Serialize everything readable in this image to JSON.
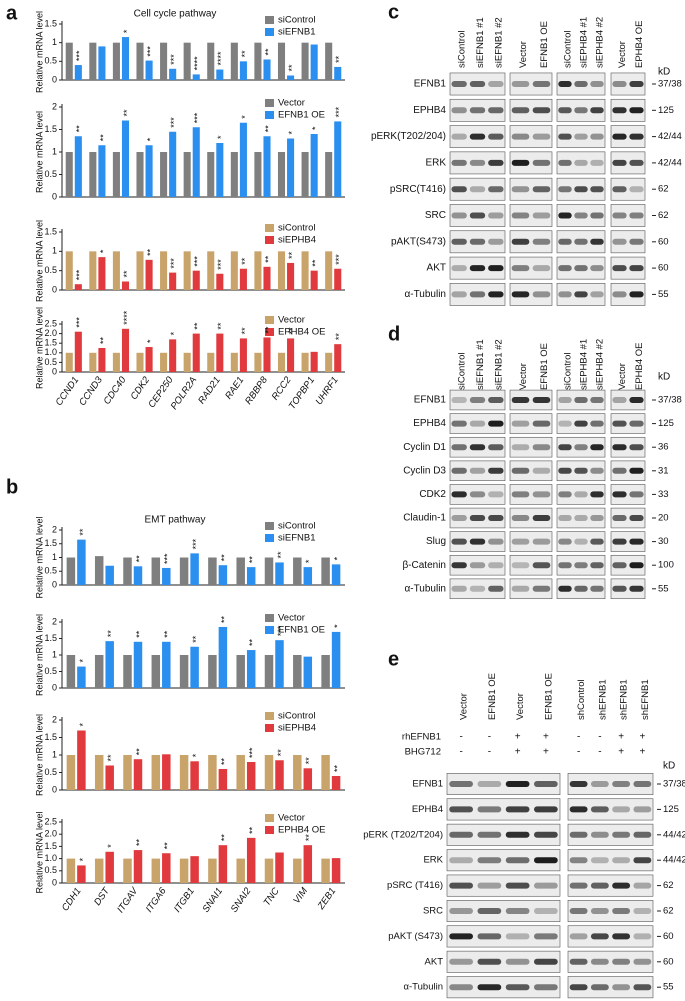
{
  "panel_labels": [
    "a",
    "b"
  ],
  "chart_data": [
    {
      "type": "bar",
      "title": "Cell cycle pathway",
      "y_label": "Relative mRNA level",
      "ylim": [
        0,
        1.5
      ],
      "yticks": [
        0,
        0.5,
        1,
        1.5
      ],
      "series": [
        {
          "name": "siControl",
          "color": "#7f7f7f",
          "values": [
            1,
            1,
            1,
            1,
            1,
            1,
            1,
            1,
            1,
            1,
            1,
            1
          ]
        },
        {
          "name": "siEFNB1",
          "color": "#2b8ff0",
          "values": [
            0.4,
            0.9,
            1.15,
            0.52,
            0.3,
            0.15,
            0.28,
            0.5,
            0.55,
            0.12,
            0.95,
            0.35
          ],
          "stars": [
            "***",
            null,
            "*",
            "***",
            "***",
            "****",
            "****",
            "**",
            "**",
            "**",
            null,
            "**"
          ]
        }
      ]
    },
    {
      "type": "bar",
      "y_label": "Relative mRNA level",
      "ylim": [
        0,
        2
      ],
      "yticks": [
        0,
        0.5,
        1,
        1.5,
        2
      ],
      "series": [
        {
          "name": "Vector",
          "color": "#7f7f7f",
          "values": [
            1,
            1,
            1,
            1,
            1,
            1,
            1,
            1,
            1,
            1,
            1,
            1
          ]
        },
        {
          "name": "EFNB1 OE",
          "color": "#2b8ff0",
          "values": [
            1.35,
            1.15,
            1.7,
            1.15,
            1.45,
            1.55,
            1.2,
            1.65,
            1.35,
            1.3,
            1.4,
            1.68
          ],
          "stars": [
            "**",
            "**",
            "**",
            "*",
            "***",
            "***",
            "*",
            "*",
            "**",
            "*",
            "*",
            "***"
          ]
        }
      ]
    },
    {
      "type": "bar",
      "y_label": "Relative mRNA level",
      "ylim": [
        0,
        1.5
      ],
      "yticks": [
        0,
        0.5,
        1,
        1.5
      ],
      "series": [
        {
          "name": "siControl",
          "color": "#c9a46a",
          "values": [
            1,
            1,
            1,
            1,
            1,
            1,
            1,
            1,
            1,
            1,
            1,
            1
          ]
        },
        {
          "name": "siEPHB4",
          "color": "#e03a3e",
          "values": [
            0.15,
            0.85,
            0.22,
            0.78,
            0.45,
            0.5,
            0.42,
            0.55,
            0.6,
            0.7,
            0.5,
            0.55
          ],
          "stars": [
            "***",
            "*",
            "**",
            "**",
            "***",
            "***",
            "***",
            "**",
            "**",
            "**",
            "**",
            "***"
          ]
        }
      ]
    },
    {
      "type": "bar",
      "y_label": "Relative mRNA level",
      "ylim": [
        0,
        2.5
      ],
      "yticks": [
        0,
        0.5,
        {
          "value": 1,
          "label": "1.0"
        },
        1.5,
        {
          "value": 2,
          "label": "2.0"
        },
        2.5
      ],
      "categories": [
        "CCND1",
        "CCND3",
        "CDC40",
        "CDK2",
        "CEP250",
        "POLR2A",
        "RAD21",
        "RAE1",
        "RBBP8",
        "RCC2",
        "TOPBP1",
        "UHRF1"
      ],
      "series": [
        {
          "name": "Vector",
          "color": "#c9a46a",
          "values": [
            1,
            1,
            1,
            1,
            1,
            1,
            1,
            1,
            1,
            1,
            1,
            1
          ]
        },
        {
          "name": "EPHB4 OE",
          "color": "#e03a3e",
          "values": [
            2.1,
            1.25,
            2.25,
            1.3,
            1.7,
            2.0,
            2.0,
            1.75,
            1.8,
            1.75,
            1.05,
            1.45
          ],
          "stars": [
            "***",
            "**",
            "****",
            "*",
            "*",
            "**",
            "**",
            "**",
            "**",
            "**",
            null,
            "**"
          ]
        }
      ]
    },
    {
      "type": "bar",
      "title": "EMT pathway",
      "y_label": "Relative mRNA level",
      "ylim": [
        0,
        2
      ],
      "yticks": [
        0,
        0.5,
        1,
        1.5,
        2
      ],
      "series": [
        {
          "name": "siControl",
          "color": "#7f7f7f",
          "values": [
            1,
            1.05,
            1,
            1,
            1,
            1,
            1,
            1,
            1,
            1
          ]
        },
        {
          "name": "siEFNB1",
          "color": "#2b8ff0",
          "values": [
            1.65,
            0.7,
            0.68,
            0.62,
            1.15,
            0.72,
            0.65,
            0.82,
            0.65,
            0.75
          ],
          "stars": [
            "**",
            null,
            "**",
            "***",
            "***",
            "**",
            "**",
            "**",
            "*",
            "*"
          ]
        }
      ]
    },
    {
      "type": "bar",
      "y_label": "Relative mRNA level",
      "ylim": [
        0,
        2
      ],
      "yticks": [
        0,
        0.5,
        1,
        1.5,
        2
      ],
      "series": [
        {
          "name": "Vector",
          "color": "#7f7f7f",
          "values": [
            1,
            1,
            1,
            1,
            1,
            1,
            1,
            1,
            1,
            1
          ]
        },
        {
          "name": "EFNB1 OE",
          "color": "#2b8ff0",
          "values": [
            0.65,
            1.42,
            1.4,
            1.4,
            1.25,
            1.85,
            1.15,
            1.45,
            0.95,
            1.7
          ],
          "stars": [
            "*",
            "**",
            "**",
            "**",
            "**",
            "**",
            "**",
            "***",
            null,
            "*"
          ]
        }
      ]
    },
    {
      "type": "bar",
      "y_label": "Relative mRNA level",
      "ylim": [
        0,
        2
      ],
      "yticks": [
        0,
        0.5,
        1,
        1.5,
        2
      ],
      "series": [
        {
          "name": "siControl",
          "color": "#c9a46a",
          "values": [
            1,
            1,
            1,
            1,
            1,
            1,
            1,
            1,
            1,
            1
          ]
        },
        {
          "name": "siEPHB4",
          "color": "#e03a3e",
          "values": [
            1.7,
            0.7,
            0.88,
            1.02,
            0.82,
            0.6,
            0.8,
            0.85,
            0.62,
            0.4
          ],
          "stars": [
            "*",
            "**",
            "**",
            null,
            "*",
            "**",
            "***",
            "**",
            "**",
            "**"
          ]
        }
      ]
    },
    {
      "type": "bar",
      "y_label": "Relative mRNA level",
      "ylim": [
        0,
        2.5
      ],
      "yticks": [
        0,
        0.5,
        {
          "value": 1,
          "label": "1.0"
        },
        1.5,
        {
          "value": 2,
          "label": "2.0"
        },
        2.5
      ],
      "categories": [
        "CDH1",
        "DST",
        "ITGAV",
        "ITGA6",
        "ITGB1",
        "SNAI1",
        "SNAI2",
        "TNC",
        "VIM",
        "ZEB1"
      ],
      "series": [
        {
          "name": "Vector",
          "color": "#c9a46a",
          "values": [
            1,
            1,
            1,
            1,
            1,
            1,
            1,
            1,
            1,
            1
          ]
        },
        {
          "name": "EPHB4 OE",
          "color": "#e03a3e",
          "values": [
            0.72,
            1.28,
            1.35,
            1.22,
            1.1,
            1.55,
            1.85,
            1.25,
            1.55,
            1.02
          ],
          "stars": [
            "*",
            "*",
            "**",
            "**",
            null,
            "**",
            "**",
            null,
            "**",
            null
          ]
        }
      ]
    }
  ],
  "blots": [
    {
      "label": "c",
      "kd_header": "kD",
      "lanes": [
        [
          "siControl",
          "siEFNB1 #1",
          "siEFNB1 #2"
        ],
        [
          "Vector",
          "EFNB1 OE"
        ],
        [
          "siControl",
          "siEPHB4 #1",
          "siEPHB4 #2"
        ],
        [
          "Vector",
          "EPHB4 OE"
        ]
      ],
      "rows": [
        {
          "name": "EFNB1",
          "kd": "37/38"
        },
        {
          "name": "EPHB4",
          "kd": "125"
        },
        {
          "name": "pERK(T202/204)",
          "kd": "42/44"
        },
        {
          "name": "ERK",
          "kd": "42/44"
        },
        {
          "name": "pSRC(T416)",
          "kd": "62"
        },
        {
          "name": "SRC",
          "kd": "62"
        },
        {
          "name": "pAKT(S473)",
          "kd": "60"
        },
        {
          "name": "AKT",
          "kd": "60"
        },
        {
          "name": "α-Tubulin",
          "kd": "55"
        }
      ]
    },
    {
      "label": "d",
      "kd_header": "kD",
      "lanes": [
        [
          "siControl",
          "siEFNB1 #1",
          "siEFNB1 #2"
        ],
        [
          "Vector",
          "EFNB1 OE"
        ],
        [
          "siControl",
          "siEPHB4 #1",
          "siEPHB4 #2"
        ],
        [
          "Vector",
          "EPHB4 OE"
        ]
      ],
      "rows": [
        {
          "name": "EFNB1",
          "kd": "37/38"
        },
        {
          "name": "EPHB4",
          "kd": "125"
        },
        {
          "name": "Cyclin D1",
          "kd": "36"
        },
        {
          "name": "Cyclin D3",
          "kd": "31"
        },
        {
          "name": "CDK2",
          "kd": "33"
        },
        {
          "name": "Claudin-1",
          "kd": "20"
        },
        {
          "name": "Slug",
          "kd": "30"
        },
        {
          "name": "β-Catenin",
          "kd": "100"
        },
        {
          "name": "α-Tubulin",
          "kd": "55"
        }
      ]
    },
    {
      "label": "e",
      "kd_header": "kD",
      "lanes": [
        [
          "Vector",
          "EFNB1 OE",
          "Vector",
          "EFNB1 OE"
        ],
        [
          "shControl",
          "shEFNB1",
          "shEFNB1",
          "shEFNB1"
        ]
      ],
      "treatments": [
        {
          "name": "rhEFNB1",
          "groups": [
            [
              "-",
              "-",
              "+",
              "+"
            ],
            [
              "-",
              "-",
              "+",
              "+"
            ]
          ]
        },
        {
          "name": "BHG712",
          "groups": [
            [
              "-",
              "-",
              "+",
              "+"
            ],
            [
              "-",
              "-",
              "+",
              "+"
            ]
          ]
        }
      ],
      "rows": [
        {
          "name": "EFNB1",
          "kd": "37/38"
        },
        {
          "name": "EPHB4",
          "kd": "125"
        },
        {
          "name": "pERK (T202/T204)",
          "kd": "44/42"
        },
        {
          "name": "ERK",
          "kd": "44/42"
        },
        {
          "name": "pSRC (T416)",
          "kd": "62"
        },
        {
          "name": "SRC",
          "kd": "62"
        },
        {
          "name": "pAKT (S473)",
          "kd": "60"
        },
        {
          "name": "AKT",
          "kd": "60"
        },
        {
          "name": "α-Tubulin",
          "kd": "55"
        }
      ]
    }
  ]
}
